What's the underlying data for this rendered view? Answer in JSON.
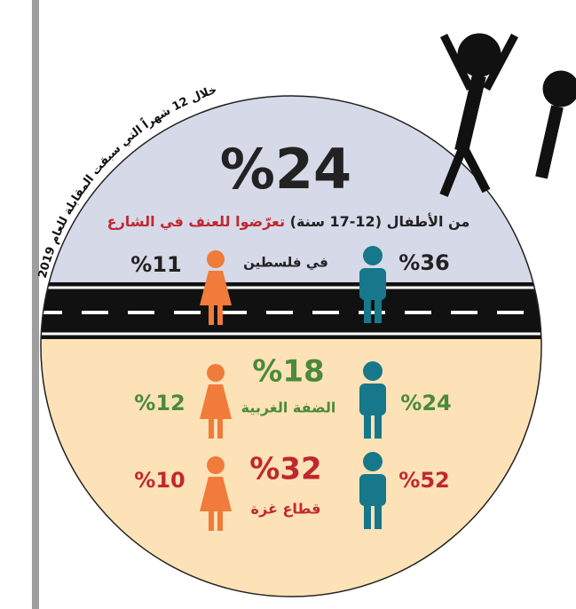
{
  "period_note": "خلال 12 شهراً التي سبقت المقابلة للعام 2019",
  "headline": {
    "value": "%24",
    "text": "من الأطفال (12-17 سنة)",
    "highlight": "تعرّضوا للعنف في الشارع"
  },
  "regions": [
    {
      "name": "في فلسطين",
      "boys": "%36",
      "girls": "%11"
    },
    {
      "name": "الضفة الغربية",
      "total": "%18",
      "boys": "%24",
      "girls": "%12"
    },
    {
      "name": "قطاع غزة",
      "total": "%32",
      "boys": "%52",
      "girls": "%10"
    }
  ]
}
